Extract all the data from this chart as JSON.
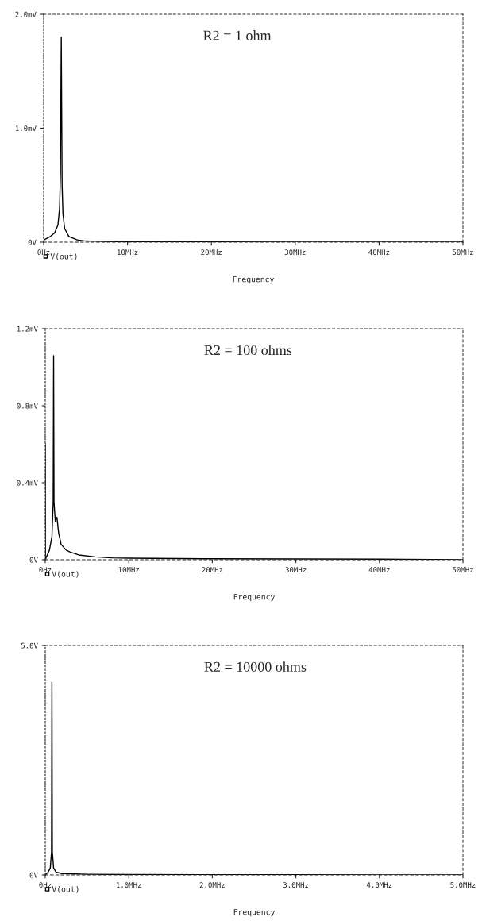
{
  "chart_data": [
    {
      "type": "line",
      "xlabel": "Frequency",
      "annotations": [
        "R2 = 1 ohm"
      ],
      "legend": "bottom left",
      "grid": false,
      "series": [
        {
          "name": "V(out)",
          "color": "#000000",
          "x": [
            0,
            0.02,
            0.05,
            0.3,
            0.8,
            1.3,
            1.7,
            1.9,
            2.0,
            2.1,
            2.2,
            2.3,
            2.5,
            3.0,
            4.0,
            5.0,
            7.0,
            10,
            20,
            30,
            40,
            50
          ],
          "values": [
            0.52,
            0.0,
            0.02,
            0.03,
            0.05,
            0.08,
            0.15,
            0.3,
            0.6,
            1.8,
            0.5,
            0.25,
            0.12,
            0.05,
            0.02,
            0.01,
            0.006,
            0.004,
            0.002,
            0.001,
            0.001,
            0.0
          ]
        }
      ],
      "xlim": [
        0,
        50
      ],
      "xticks": [
        {
          "value": 0,
          "label": "0Hz"
        },
        {
          "value": 10,
          "label": "10MHz"
        },
        {
          "value": 20,
          "label": "20MHz"
        },
        {
          "value": 30,
          "label": "30MHz"
        },
        {
          "value": 40,
          "label": "40MHz"
        },
        {
          "value": 50,
          "label": "50MHz"
        }
      ],
      "ylim": [
        0,
        2.0
      ],
      "yticks": [
        {
          "value": 0,
          "label": "0V"
        },
        {
          "value": 1.0,
          "label": "1.0mV"
        },
        {
          "value": 2.0,
          "label": "2.0mV"
        }
      ]
    },
    {
      "type": "line",
      "xlabel": "Frequency",
      "annotations": [
        "R2 = 100 ohms"
      ],
      "legend": "bottom left",
      "grid": false,
      "series": [
        {
          "name": "V(out)",
          "color": "#000000",
          "x": [
            0,
            0.02,
            0.1,
            0.5,
            0.8,
            0.95,
            1.0,
            1.05,
            1.2,
            1.4,
            1.6,
            1.9,
            2.5,
            3.0,
            4.0,
            6.0,
            8.0,
            10,
            20,
            30,
            40,
            50
          ],
          "values": [
            0.6,
            0.0,
            0.01,
            0.05,
            0.12,
            0.3,
            1.06,
            0.3,
            0.2,
            0.22,
            0.14,
            0.08,
            0.05,
            0.04,
            0.025,
            0.015,
            0.01,
            0.008,
            0.005,
            0.004,
            0.003,
            0.0
          ]
        }
      ],
      "xlim": [
        0,
        50
      ],
      "xticks": [
        {
          "value": 0,
          "label": "0Hz"
        },
        {
          "value": 10,
          "label": "10MHz"
        },
        {
          "value": 20,
          "label": "20MHz"
        },
        {
          "value": 30,
          "label": "30MHz"
        },
        {
          "value": 40,
          "label": "40MHz"
        },
        {
          "value": 50,
          "label": "50MHz"
        }
      ],
      "ylim": [
        0,
        1.2
      ],
      "yticks": [
        {
          "value": 0,
          "label": "0V"
        },
        {
          "value": 0.4,
          "label": "0.4mV"
        },
        {
          "value": 0.8,
          "label": "0.8mV"
        },
        {
          "value": 1.2,
          "label": "1.2mV"
        }
      ]
    },
    {
      "type": "line",
      "xlabel": "Frequency",
      "annotations": [
        "R2 = 10000 ohms"
      ],
      "legend": "bottom left",
      "grid": false,
      "series": [
        {
          "name": "V(out)",
          "color": "#000000",
          "x": [
            0,
            0.03,
            0.06,
            0.075,
            0.08,
            0.085,
            0.1,
            0.13,
            0.2,
            0.5,
            1.0,
            2.0,
            3.0,
            4.0,
            5.0
          ],
          "values": [
            0.0,
            0.05,
            0.15,
            0.5,
            4.2,
            0.5,
            0.15,
            0.06,
            0.03,
            0.015,
            0.01,
            0.005,
            0.004,
            0.003,
            0.002
          ]
        }
      ],
      "xlim": [
        0,
        5.0
      ],
      "xticks": [
        {
          "value": 0,
          "label": "0Hz"
        },
        {
          "value": 1.0,
          "label": "1.0MHz"
        },
        {
          "value": 2.0,
          "label": "2.0MHz"
        },
        {
          "value": 3.0,
          "label": "3.0MHz"
        },
        {
          "value": 4.0,
          "label": "4.0MHz"
        },
        {
          "value": 5.0,
          "label": "5.0MHz"
        }
      ],
      "ylim": [
        0,
        5.0
      ],
      "yticks": [
        {
          "value": 0,
          "label": "0V"
        },
        {
          "value": 5.0,
          "label": "5.0V"
        }
      ]
    }
  ]
}
